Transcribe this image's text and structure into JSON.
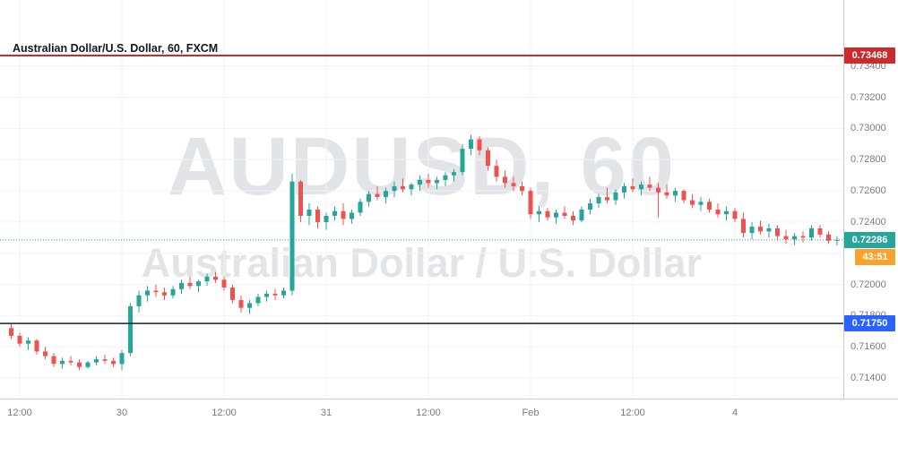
{
  "legend": {
    "title": "Australian Dollar/U.S. Dollar, 60, FXCM"
  },
  "watermark": {
    "line1": "AUDUSD, 60",
    "line2": "Australian Dollar / U.S. Dollar"
  },
  "chart_data": {
    "type": "candlestick",
    "title": "Australian Dollar/U.S. Dollar, 60, FXCM",
    "symbol": "AUDUSD",
    "interval_minutes": 60,
    "exchange": "FXCM",
    "up_color": "#26a69a",
    "down_color": "#ef5350",
    "grid_on": true,
    "legend_position": "top-left",
    "ylim": [
      0.71268,
      0.73824
    ],
    "grid_prices": [
      0.734,
      0.732,
      0.73,
      0.728,
      0.726,
      0.724,
      0.722,
      0.72,
      0.718,
      0.716,
      0.714
    ],
    "price_axis_labels": [
      "0.73400",
      "0.73200",
      "0.73000",
      "0.72800",
      "0.72600",
      "0.72400",
      "0.72000",
      "0.71800",
      "0.71600",
      "0.71400"
    ],
    "time_labels": [
      {
        "text": "12:00",
        "index": 1
      },
      {
        "text": "30",
        "index": 13
      },
      {
        "text": "12:00",
        "index": 25
      },
      {
        "text": "31",
        "index": 37
      },
      {
        "text": "12:00",
        "index": 49
      },
      {
        "text": "Feb",
        "index": 61
      },
      {
        "text": "12:00",
        "index": 73
      },
      {
        "text": "4",
        "index": 85
      }
    ],
    "lines": {
      "alert": {
        "price": 0.73468,
        "label": "0.73468",
        "color": "#cc2b2b",
        "style": "solid"
      },
      "level": {
        "price": 0.7175,
        "label": "0.71750",
        "color": "#1b1f2a",
        "tag_color": "#2962ff",
        "style": "solid"
      },
      "last": {
        "price": 0.72286,
        "label": "0.72286",
        "color": "#26a69a",
        "style": "dotted"
      }
    },
    "countdown": {
      "text": "43:51",
      "color": "#f8a32f"
    },
    "candles": [
      [
        0.7172,
        0.71745,
        0.7165,
        0.7167
      ],
      [
        0.7167,
        0.7169,
        0.716,
        0.7162
      ],
      [
        0.7162,
        0.7166,
        0.7158,
        0.7164
      ],
      [
        0.7164,
        0.7165,
        0.7155,
        0.7157
      ],
      [
        0.7157,
        0.716,
        0.7152,
        0.7154
      ],
      [
        0.7154,
        0.7156,
        0.7147,
        0.7149
      ],
      [
        0.7149,
        0.7153,
        0.7146,
        0.7151
      ],
      [
        0.7151,
        0.7154,
        0.7148,
        0.715
      ],
      [
        0.715,
        0.7152,
        0.7145,
        0.7147
      ],
      [
        0.7147,
        0.7151,
        0.7146,
        0.715
      ],
      [
        0.715,
        0.7154,
        0.7148,
        0.7152
      ],
      [
        0.7152,
        0.7155,
        0.7149,
        0.7151
      ],
      [
        0.7151,
        0.7153,
        0.7147,
        0.7149
      ],
      [
        0.7149,
        0.7158,
        0.7145,
        0.7156
      ],
      [
        0.7156,
        0.7188,
        0.7154,
        0.7186
      ],
      [
        0.7186,
        0.7196,
        0.7182,
        0.7193
      ],
      [
        0.7193,
        0.7199,
        0.7189,
        0.7196
      ],
      [
        0.7196,
        0.72,
        0.7192,
        0.7195
      ],
      [
        0.7195,
        0.7198,
        0.719,
        0.7193
      ],
      [
        0.7193,
        0.7199,
        0.7191,
        0.7197
      ],
      [
        0.7197,
        0.7203,
        0.7194,
        0.7201
      ],
      [
        0.7201,
        0.7205,
        0.7197,
        0.7199
      ],
      [
        0.7199,
        0.7203,
        0.7195,
        0.7202
      ],
      [
        0.7202,
        0.7207,
        0.7199,
        0.7205
      ],
      [
        0.7205,
        0.7208,
        0.7201,
        0.7203
      ],
      [
        0.7203,
        0.7205,
        0.7196,
        0.7198
      ],
      [
        0.7198,
        0.72,
        0.7188,
        0.719
      ],
      [
        0.719,
        0.7193,
        0.7182,
        0.7185
      ],
      [
        0.7185,
        0.719,
        0.7181,
        0.7188
      ],
      [
        0.7188,
        0.7194,
        0.7186,
        0.7192
      ],
      [
        0.7192,
        0.7196,
        0.7189,
        0.7194
      ],
      [
        0.7194,
        0.7197,
        0.719,
        0.7193
      ],
      [
        0.7193,
        0.7198,
        0.7191,
        0.7196
      ],
      [
        0.7196,
        0.7271,
        0.7193,
        0.7266
      ],
      [
        0.7266,
        0.7267,
        0.724,
        0.7244
      ],
      [
        0.7244,
        0.7252,
        0.7238,
        0.7248
      ],
      [
        0.7248,
        0.725,
        0.7236,
        0.724
      ],
      [
        0.724,
        0.7246,
        0.7235,
        0.7244
      ],
      [
        0.7244,
        0.725,
        0.7241,
        0.7247
      ],
      [
        0.7247,
        0.7252,
        0.7238,
        0.7242
      ],
      [
        0.7242,
        0.7248,
        0.7239,
        0.7246
      ],
      [
        0.7246,
        0.7255,
        0.7244,
        0.7253
      ],
      [
        0.7253,
        0.726,
        0.725,
        0.7258
      ],
      [
        0.7258,
        0.7263,
        0.7254,
        0.7256
      ],
      [
        0.7256,
        0.7262,
        0.7252,
        0.726
      ],
      [
        0.726,
        0.7266,
        0.7256,
        0.7263
      ],
      [
        0.7263,
        0.7268,
        0.7259,
        0.7261
      ],
      [
        0.7261,
        0.7265,
        0.7257,
        0.7264
      ],
      [
        0.7264,
        0.727,
        0.726,
        0.7267
      ],
      [
        0.7267,
        0.7271,
        0.7262,
        0.7265
      ],
      [
        0.7265,
        0.7269,
        0.7261,
        0.7267
      ],
      [
        0.7267,
        0.7272,
        0.7263,
        0.727
      ],
      [
        0.727,
        0.7274,
        0.7266,
        0.7272
      ],
      [
        0.7272,
        0.729,
        0.727,
        0.7287
      ],
      [
        0.7287,
        0.7296,
        0.7283,
        0.7293
      ],
      [
        0.7293,
        0.7295,
        0.7283,
        0.7286
      ],
      [
        0.7286,
        0.7288,
        0.7273,
        0.7276
      ],
      [
        0.7276,
        0.728,
        0.7266,
        0.7269
      ],
      [
        0.7269,
        0.7273,
        0.7262,
        0.7265
      ],
      [
        0.7265,
        0.7269,
        0.726,
        0.7263
      ],
      [
        0.7263,
        0.7266,
        0.7257,
        0.726
      ],
      [
        0.726,
        0.7262,
        0.7242,
        0.7245
      ],
      [
        0.7245,
        0.725,
        0.724,
        0.7247
      ],
      [
        0.7247,
        0.7249,
        0.7241,
        0.7243
      ],
      [
        0.7243,
        0.7248,
        0.7239,
        0.7246
      ],
      [
        0.7246,
        0.725,
        0.7242,
        0.7244
      ],
      [
        0.7244,
        0.7247,
        0.7238,
        0.7241
      ],
      [
        0.7241,
        0.725,
        0.724,
        0.7248
      ],
      [
        0.7248,
        0.7255,
        0.7245,
        0.7252
      ],
      [
        0.7252,
        0.7258,
        0.7249,
        0.7256
      ],
      [
        0.7256,
        0.7262,
        0.7252,
        0.7254
      ],
      [
        0.7254,
        0.7261,
        0.7251,
        0.7259
      ],
      [
        0.7259,
        0.7265,
        0.7255,
        0.7263
      ],
      [
        0.7263,
        0.7268,
        0.7259,
        0.7261
      ],
      [
        0.7261,
        0.7266,
        0.7257,
        0.7264
      ],
      [
        0.7264,
        0.7269,
        0.726,
        0.7262
      ],
      [
        0.7262,
        0.7265,
        0.7243,
        0.7259
      ],
      [
        0.7259,
        0.7264,
        0.7255,
        0.7257
      ],
      [
        0.7257,
        0.7262,
        0.7253,
        0.726
      ],
      [
        0.726,
        0.7261,
        0.7252,
        0.7254
      ],
      [
        0.7254,
        0.7258,
        0.7249,
        0.7251
      ],
      [
        0.7251,
        0.7256,
        0.7247,
        0.7253
      ],
      [
        0.7253,
        0.7255,
        0.7246,
        0.7248
      ],
      [
        0.7248,
        0.7252,
        0.7243,
        0.7245
      ],
      [
        0.7245,
        0.725,
        0.7241,
        0.7247
      ],
      [
        0.7247,
        0.7249,
        0.724,
        0.7242
      ],
      [
        0.7242,
        0.7246,
        0.723,
        0.7233
      ],
      [
        0.7233,
        0.724,
        0.7229,
        0.7237
      ],
      [
        0.7237,
        0.7241,
        0.7232,
        0.7234
      ],
      [
        0.7234,
        0.7239,
        0.723,
        0.7236
      ],
      [
        0.7236,
        0.7238,
        0.7228,
        0.7231
      ],
      [
        0.7231,
        0.7235,
        0.7226,
        0.7229
      ],
      [
        0.7229,
        0.7233,
        0.7225,
        0.7231
      ],
      [
        0.7231,
        0.7234,
        0.7227,
        0.723
      ],
      [
        0.723,
        0.7238,
        0.7228,
        0.7236
      ],
      [
        0.7236,
        0.7238,
        0.723,
        0.7232
      ],
      [
        0.7232,
        0.7234,
        0.7226,
        0.7228
      ],
      [
        0.7228,
        0.7231,
        0.7225,
        0.72286
      ]
    ]
  }
}
